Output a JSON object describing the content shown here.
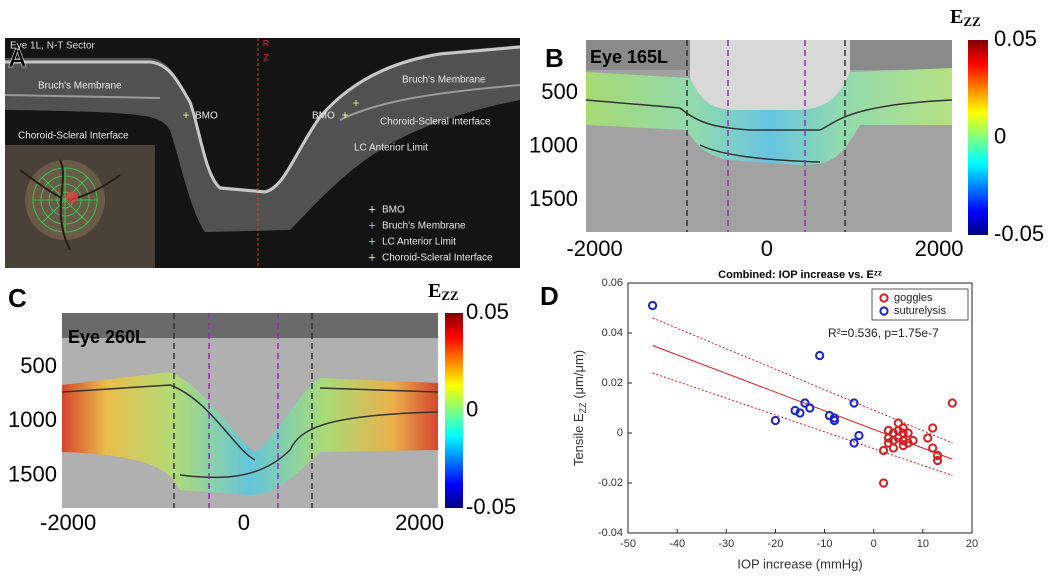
{
  "chart_data": [
    {
      "type": "image",
      "label": "A",
      "title": "Eye 1L, N-T Sector",
      "axis_marks": [
        "R",
        "Z"
      ],
      "annotations": [
        "Bruch's Membrane",
        "BMO",
        "Choroid-Scleral Interface",
        "BMO",
        "Bruch's Membrane",
        "Choroid-Scleral Interface",
        "LC Anterior Limit"
      ],
      "legend": [
        {
          "name": "BMO",
          "color": "#f2f2a8"
        },
        {
          "name": "Bruch's Membrane",
          "color": "#b9a6f0"
        },
        {
          "name": "LC Anterior Limit",
          "color": "#9be07a"
        },
        {
          "name": "Choroid-Scleral Interface",
          "color": "#e8e88a"
        }
      ]
    },
    {
      "type": "strain-map",
      "label": "B",
      "title": "Eye 165L",
      "colorbar_title": "E",
      "colorbar_title_sub": "ZZ",
      "clim": [
        -0.05,
        0.05
      ],
      "cticks": [
        0.05,
        0,
        -0.05
      ],
      "xlim": [
        -2100,
        2150
      ],
      "xticks": [
        -2000,
        0,
        2000
      ],
      "ylim": [
        0,
        1800
      ],
      "yticks": [
        500,
        1000,
        1500
      ]
    },
    {
      "type": "strain-map",
      "label": "C",
      "title": "Eye 260L",
      "colorbar_title": "E",
      "colorbar_title_sub": "ZZ",
      "clim": [
        -0.05,
        0.05
      ],
      "cticks": [
        0.05,
        0,
        -0.05
      ],
      "xlim": [
        -2070,
        2210
      ],
      "xticks": [
        -2000,
        0,
        2000
      ],
      "ylim": [
        0,
        1800
      ],
      "yticks": [
        500,
        1000,
        1500
      ]
    },
    {
      "type": "scatter",
      "label": "D",
      "title": "Combined: IOP increase vs. Eᶻᶻ",
      "xlabel": "IOP increase (mmHg)",
      "ylabel": "Tensile E",
      "ylabel_sub": "ZZ",
      "ylabel_unit": " (μm/μm)",
      "annotation": "R²=0.536, p=1.75e-7",
      "xlim": [
        -50,
        20
      ],
      "xticks": [
        -50,
        -40,
        -30,
        -20,
        -10,
        0,
        10,
        20
      ],
      "ylim": [
        -0.04,
        0.06
      ],
      "yticks": [
        -0.04,
        -0.02,
        0,
        0.02,
        0.04,
        0.06
      ],
      "series": [
        {
          "name": "goggles",
          "color": "#d42020",
          "x": [
            2,
            2,
            3,
            3,
            3,
            4,
            4,
            4,
            5,
            5,
            5,
            6,
            6,
            6,
            6,
            7,
            7,
            8,
            11,
            12,
            12,
            13,
            13,
            16
          ],
          "values": [
            -0.007,
            -0.02,
            -0.002,
            0.001,
            -0.004,
            0,
            -0.003,
            -0.006,
            0.004,
            -0.002,
            0.001,
            0.002,
            -0.003,
            -0.005,
            0,
            0,
            -0.004,
            -0.003,
            -0.002,
            0.002,
            -0.006,
            -0.009,
            -0.011,
            0.012
          ]
        },
        {
          "name": "suturelysis",
          "color": "#1a22d0",
          "x": [
            -45,
            -20,
            -16,
            -15,
            -14,
            -13,
            -11,
            -9,
            -8,
            -8,
            -4,
            -4,
            -3
          ],
          "values": [
            0.051,
            0.005,
            0.009,
            0.008,
            0.012,
            0.01,
            0.031,
            0.007,
            0.005,
            0.006,
            0.012,
            -0.004,
            -0.001
          ]
        }
      ],
      "fit": {
        "color": "#d42020",
        "x": [
          -45,
          16
        ],
        "values": [
          0.035,
          -0.0105
        ],
        "upper": [
          0.046,
          -0.004
        ],
        "lower": [
          0.024,
          -0.017
        ]
      }
    }
  ]
}
